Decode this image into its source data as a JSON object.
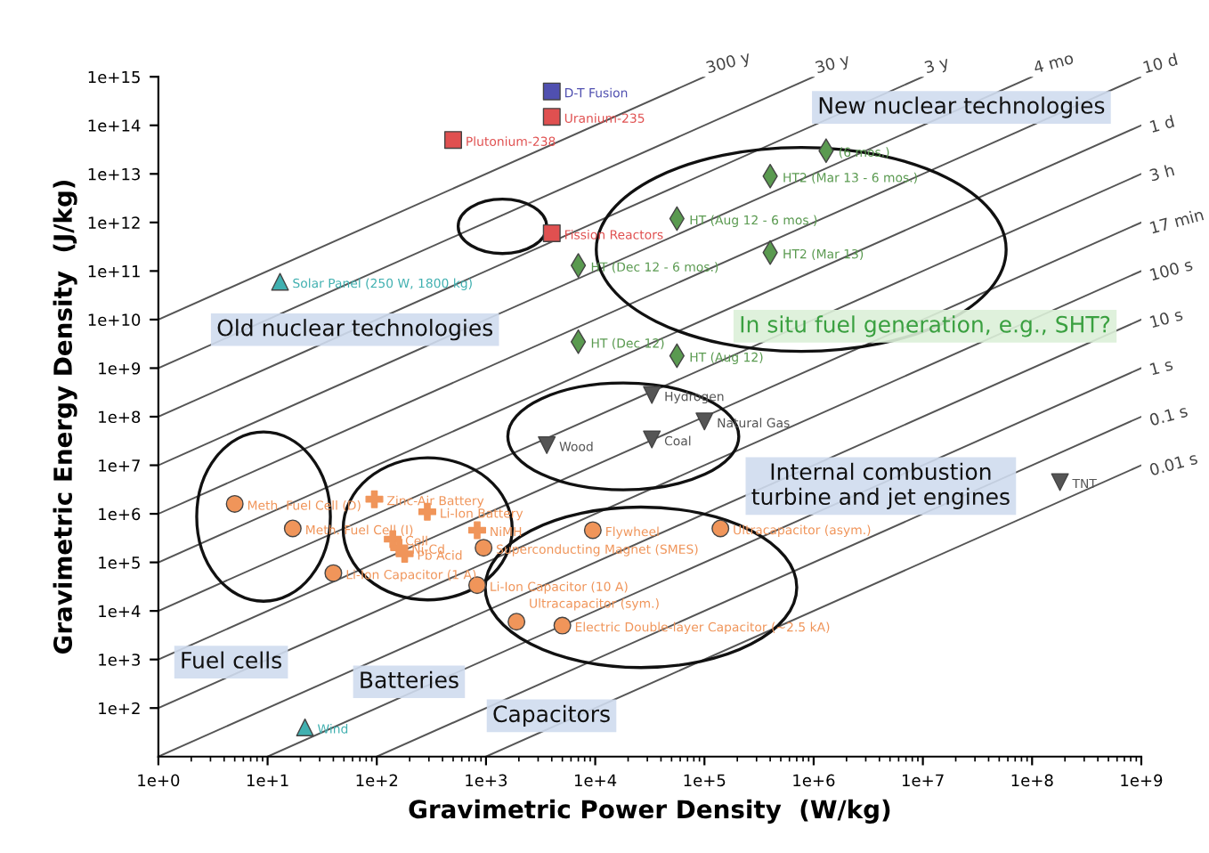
{
  "chart_data": {
    "type": "scatter",
    "log": "xy",
    "grid": false,
    "legend": false,
    "xlabel": "Gravimetric Power Density  (W/kg)",
    "ylabel": "Gravimetric Energy Density  (J/kg)",
    "xlim": [
      1,
      1000000000
    ],
    "ylim": [
      10,
      1000000000000000
    ],
    "xticks": [
      {
        "value": 1,
        "label": "1e+0"
      },
      {
        "value": 10,
        "label": "1e+1"
      },
      {
        "value": 100,
        "label": "1e+2"
      },
      {
        "value": 1000,
        "label": "1e+3"
      },
      {
        "value": 10000,
        "label": "1e+4"
      },
      {
        "value": 100000,
        "label": "1e+5"
      },
      {
        "value": 1000000,
        "label": "1e+6"
      },
      {
        "value": 10000000,
        "label": "1e+7"
      },
      {
        "value": 100000000,
        "label": "1e+8"
      },
      {
        "value": 1000000000,
        "label": "1e+9"
      }
    ],
    "yticks": [
      {
        "value": 100,
        "label": "1e+2"
      },
      {
        "value": 1000,
        "label": "1e+3"
      },
      {
        "value": 10000,
        "label": "1e+4"
      },
      {
        "value": 100000,
        "label": "1e+5"
      },
      {
        "value": 1000000,
        "label": "1e+6"
      },
      {
        "value": 10000000,
        "label": "1e+7"
      },
      {
        "value": 100000000,
        "label": "1e+8"
      },
      {
        "value": 1000000000,
        "label": "1e+9"
      },
      {
        "value": 10000000000,
        "label": "1e+10"
      },
      {
        "value": 100000000000,
        "label": "1e+11"
      },
      {
        "value": 1000000000000,
        "label": "1e+12"
      },
      {
        "value": 10000000000000,
        "label": "1e+13"
      },
      {
        "value": 100000000000000,
        "label": "1e+14"
      },
      {
        "value": 1000000000000000,
        "label": "1e+15"
      }
    ],
    "series": [
      {
        "type": "line",
        "name": "300 y",
        "color": "#555555",
        "x": [
          1,
          100000
        ],
        "values": [
          10000000000,
          1000000000000000
        ]
      },
      {
        "type": "line",
        "name": "30 y",
        "color": "#555555",
        "x": [
          1,
          1000000
        ],
        "values": [
          1000000000,
          1000000000000000
        ]
      },
      {
        "type": "line",
        "name": "3 y",
        "color": "#555555",
        "x": [
          1,
          10000000
        ],
        "values": [
          100000000,
          1000000000000000
        ]
      },
      {
        "type": "line",
        "name": "4 mo",
        "color": "#555555",
        "x": [
          1,
          100000000
        ],
        "values": [
          10000000,
          1000000000000000
        ]
      },
      {
        "type": "line",
        "name": "10 d",
        "color": "#555555",
        "x": [
          1,
          1000000000
        ],
        "values": [
          1000000,
          1000000000000000
        ]
      },
      {
        "type": "line",
        "name": "1 d",
        "color": "#555555",
        "x": [
          1,
          1000000000
        ],
        "values": [
          100000,
          100000000000000
        ]
      },
      {
        "type": "line",
        "name": "3 h",
        "color": "#555555",
        "x": [
          1,
          1000000000
        ],
        "values": [
          10000,
          10000000000000
        ]
      },
      {
        "type": "line",
        "name": "17 min",
        "color": "#555555",
        "x": [
          1,
          1000000000
        ],
        "values": [
          1000,
          1000000000000
        ]
      },
      {
        "type": "line",
        "name": "100 s",
        "color": "#555555",
        "x": [
          1,
          1000000000
        ],
        "values": [
          100,
          100000000000
        ]
      },
      {
        "type": "line",
        "name": "10 s",
        "color": "#555555",
        "x": [
          1,
          1000000000
        ],
        "values": [
          10,
          10000000000
        ]
      },
      {
        "type": "line",
        "name": "1 s",
        "color": "#555555",
        "x": [
          10,
          1000000000
        ],
        "values": [
          10,
          1000000000
        ]
      },
      {
        "type": "line",
        "name": "0.1 s",
        "color": "#555555",
        "x": [
          100,
          1000000000
        ],
        "values": [
          10,
          100000000
        ]
      },
      {
        "type": "line",
        "name": "0.01 s",
        "color": "#555555",
        "x": [
          1000,
          1000000000
        ],
        "values": [
          10,
          10000000
        ]
      },
      {
        "marker": "square",
        "color": "#5050b0",
        "x": [
          4000
        ],
        "values": [
          500000000000000
        ]
      },
      {
        "marker": "square",
        "color": "#e05050",
        "x": [
          500,
          4000,
          4000
        ],
        "values": [
          50000000000000,
          150000000000000,
          600000000000
        ]
      },
      {
        "marker": "triangle",
        "color": "#40b0b0",
        "x": [
          13,
          22
        ],
        "values": [
          60000000000,
          40
        ]
      },
      {
        "marker": "diamond",
        "color": "#5a9a50",
        "x": [
          1300000,
          400000,
          56000,
          400000,
          7000,
          7000,
          56000
        ],
        "values": [
          30000000000000,
          9000000000000,
          1200000000000,
          240000000000,
          130000000000,
          3500000000,
          1800000000
        ]
      },
      {
        "marker": "triangle_down",
        "color": "#555555",
        "x": [
          33000,
          100000,
          3600,
          33000,
          180000000
        ],
        "values": [
          280000000,
          80000000,
          26000000,
          34000000,
          4500000
        ]
      },
      {
        "marker": "circle",
        "color": "#f0955a",
        "x": [
          5,
          17,
          40,
          950,
          830,
          1900,
          5000,
          9500,
          140000
        ],
        "values": [
          1600000,
          500000,
          60000,
          200000,
          34000,
          6000,
          5000,
          460000,
          500000
        ]
      },
      {
        "marker": "cross",
        "color": "#f0955a",
        "x": [
          95,
          290,
          140,
          160,
          180,
          830
        ],
        "values": [
          2000000,
          1100000,
          300000,
          200000,
          150000,
          460000
        ]
      }
    ],
    "annotations": [
      "Old nuclear technologies",
      "New nuclear technologies",
      "In situ fuel generation, e.g., SHT?",
      "Internal combustion\nturbine and jet engines",
      "Fuel cells",
      "Batteries",
      "Capacitors",
      {
        "text": "D-T Fusion",
        "x": 4000,
        "y": 500000000000000
      },
      {
        "text": "Plutonium-238",
        "x": 500,
        "y": 50000000000000
      },
      {
        "text": "Uranium-235",
        "x": 4000,
        "y": 150000000000000
      },
      {
        "text": "Fission Reactors",
        "x": 4000,
        "y": 600000000000
      },
      {
        "text": "Solar Panel (250 W, 1800 kg)",
        "x": 13,
        "y": 60000000000
      },
      {
        "text": "Wind",
        "x": 22,
        "y": 40
      },
      {
        "text": "(6 mos.)",
        "x": 1300000,
        "y": 30000000000000
      },
      {
        "text": "HT2 (Mar 13 - 6 mos.)",
        "x": 400000,
        "y": 9000000000000
      },
      {
        "text": "HT (Aug 12 - 6 mos.)",
        "x": 56000,
        "y": 1200000000000
      },
      {
        "text": "HT2 (Mar 13)",
        "x": 400000,
        "y": 240000000000
      },
      {
        "text": "HT (Dec 12 - 6 mos.)",
        "x": 7000,
        "y": 130000000000
      },
      {
        "text": "HT (Dec 12)",
        "x": 7000,
        "y": 3500000000
      },
      {
        "text": "HT (Aug 12)",
        "x": 56000,
        "y": 1800000000
      },
      {
        "text": "Hydrogen",
        "x": 33000,
        "y": 280000000
      },
      {
        "text": "Natural Gas",
        "x": 100000,
        "y": 80000000
      },
      {
        "text": "Wood",
        "x": 3600,
        "y": 26000000
      },
      {
        "text": "Coal",
        "x": 33000,
        "y": 34000000
      },
      {
        "text": "TNT",
        "x": 180000000,
        "y": 4500000
      },
      {
        "text": "Meth. Fuel Cell (D)",
        "x": 5,
        "y": 1600000
      },
      {
        "text": "Meth. Fuel Cell (I)",
        "x": 17,
        "y": 500000
      },
      {
        "text": "Li-Ion Capacitor (1 A)",
        "x": 40,
        "y": 60000
      },
      {
        "text": "Superconducting Magnet (SMES)",
        "x": 950,
        "y": 200000
      },
      {
        "text": "Li-Ion Capacitor (10 A)",
        "x": 830,
        "y": 34000
      },
      {
        "text": "Ultracapacitor (sym.)",
        "x": 1900,
        "y": 6000
      },
      {
        "text": "Electric Double-layer Capacitor (~2.5 kA)",
        "x": 5000,
        "y": 5000
      },
      {
        "text": "Flywheel",
        "x": 9500,
        "y": 460000
      },
      {
        "text": "Ultracapacitor (asym.)",
        "x": 140000,
        "y": 500000
      },
      {
        "text": "Zinc-Air Battery",
        "x": 95,
        "y": 2000000
      },
      {
        "text": "Li-Ion Battery",
        "x": 290,
        "y": 1100000
      },
      {
        "text": "Cell",
        "x": 140,
        "y": 300000
      },
      {
        "text": "Ni-Cd",
        "x": 160,
        "y": 200000
      },
      {
        "text": "Pb Acid",
        "x": 180,
        "y": 150000
      },
      {
        "text": "NiMH",
        "x": 830,
        "y": 460000
      }
    ]
  }
}
